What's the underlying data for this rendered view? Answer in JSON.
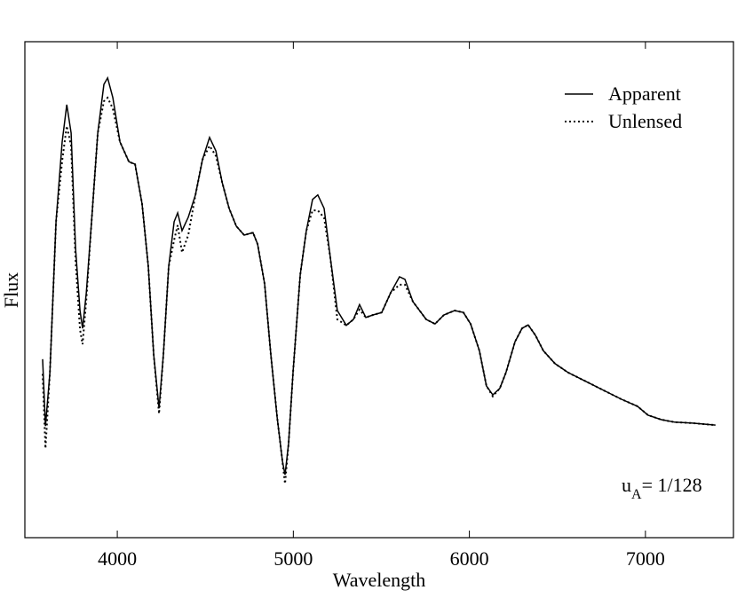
{
  "chart_data": {
    "type": "line",
    "xlabel": "Wavelength",
    "ylabel": "Flux",
    "xlim": [
      3475,
      7500
    ],
    "xticks": [
      4000,
      5000,
      6000,
      7000
    ],
    "ylim": [
      0,
      1
    ],
    "legend": "upper right",
    "annotation": [
      "u",
      "A",
      "= 1/128"
    ],
    "x": [
      3576,
      3592,
      3617,
      3652,
      3687,
      3713,
      3738,
      3763,
      3788,
      3803,
      3824,
      3854,
      3889,
      3924,
      3945,
      3975,
      4015,
      4066,
      4101,
      4141,
      4176,
      4207,
      4237,
      4262,
      4292,
      4323,
      4343,
      4368,
      4403,
      4444,
      4484,
      4524,
      4560,
      4595,
      4635,
      4676,
      4721,
      4771,
      4797,
      4837,
      4872,
      4908,
      4938,
      4953,
      4973,
      4998,
      5039,
      5074,
      5109,
      5139,
      5175,
      5210,
      5250,
      5301,
      5341,
      5376,
      5412,
      5452,
      5502,
      5553,
      5603,
      5634,
      5679,
      5755,
      5805,
      5855,
      5916,
      5966,
      6007,
      6057,
      6097,
      6133,
      6173,
      6208,
      6259,
      6299,
      6334,
      6375,
      6420,
      6486,
      6561,
      6662,
      6763,
      6864,
      6955,
      7015,
      7091,
      7166,
      7267,
      7398
    ],
    "series": [
      {
        "name": "Apparent",
        "color": "#000000",
        "style": "solid",
        "values": [
          0.36,
          0.225,
          0.333,
          0.637,
          0.798,
          0.873,
          0.816,
          0.583,
          0.458,
          0.422,
          0.494,
          0.637,
          0.816,
          0.914,
          0.927,
          0.887,
          0.798,
          0.758,
          0.753,
          0.673,
          0.547,
          0.369,
          0.261,
          0.369,
          0.547,
          0.637,
          0.655,
          0.619,
          0.646,
          0.691,
          0.762,
          0.807,
          0.78,
          0.717,
          0.664,
          0.628,
          0.61,
          0.615,
          0.592,
          0.512,
          0.369,
          0.243,
          0.154,
          0.127,
          0.19,
          0.333,
          0.53,
          0.619,
          0.682,
          0.691,
          0.664,
          0.565,
          0.458,
          0.428,
          0.44,
          0.47,
          0.444,
          0.449,
          0.454,
          0.494,
          0.526,
          0.521,
          0.476,
          0.44,
          0.431,
          0.449,
          0.458,
          0.454,
          0.431,
          0.377,
          0.306,
          0.288,
          0.301,
          0.333,
          0.395,
          0.422,
          0.429,
          0.408,
          0.377,
          0.351,
          0.333,
          0.315,
          0.297,
          0.279,
          0.265,
          0.247,
          0.238,
          0.233,
          0.231,
          0.227
        ]
      },
      {
        "name": "Unlensed",
        "color": "#000000",
        "style": "dotted",
        "values": [
          0.33,
          0.18,
          0.333,
          0.637,
          0.76,
          0.83,
          0.79,
          0.56,
          0.42,
          0.39,
          0.48,
          0.637,
          0.816,
          0.88,
          0.887,
          0.865,
          0.798,
          0.758,
          0.753,
          0.673,
          0.547,
          0.369,
          0.25,
          0.369,
          0.547,
          0.6,
          0.63,
          0.575,
          0.61,
          0.691,
          0.762,
          0.79,
          0.77,
          0.717,
          0.664,
          0.628,
          0.61,
          0.615,
          0.592,
          0.512,
          0.369,
          0.243,
          0.154,
          0.109,
          0.19,
          0.333,
          0.53,
          0.619,
          0.66,
          0.66,
          0.645,
          0.565,
          0.44,
          0.428,
          0.44,
          0.46,
          0.444,
          0.449,
          0.454,
          0.494,
          0.51,
          0.51,
          0.476,
          0.44,
          0.431,
          0.449,
          0.458,
          0.454,
          0.431,
          0.377,
          0.306,
          0.285,
          0.301,
          0.333,
          0.395,
          0.422,
          0.429,
          0.408,
          0.377,
          0.351,
          0.333,
          0.315,
          0.297,
          0.279,
          0.265,
          0.247,
          0.238,
          0.233,
          0.231,
          0.227
        ]
      }
    ]
  }
}
